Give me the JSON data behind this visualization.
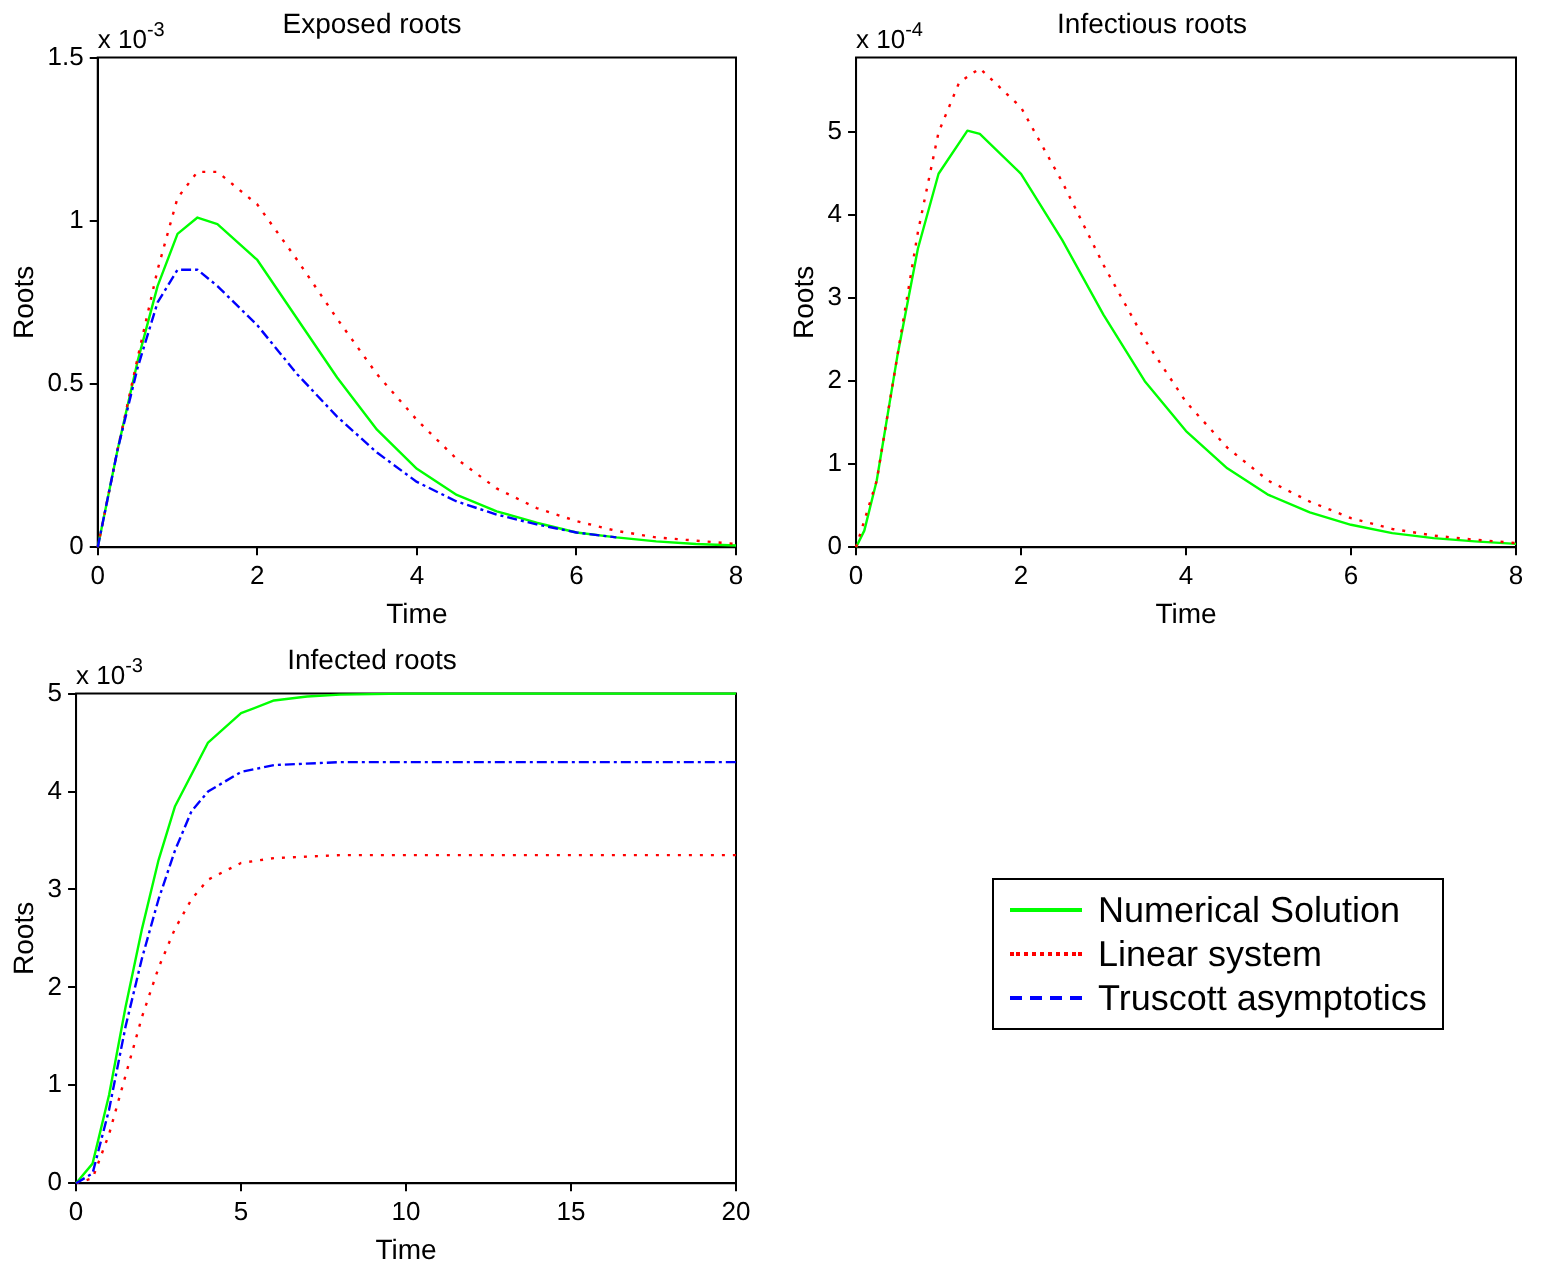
{
  "chart_data": [
    {
      "type": "line",
      "title": "Exposed roots",
      "xlabel": "Time",
      "ylabel": "Roots",
      "annotations": [
        "x 10$^{-3}$"
      ],
      "xlim": [
        0,
        8
      ],
      "xticks": [
        0,
        2,
        4,
        6,
        8
      ],
      "ylim": [
        0,
        1.5
      ],
      "yticks": [
        0,
        0.5,
        1,
        1.5
      ],
      "grid": false,
      "series": [
        {
          "color": "#00ff00",
          "line_style": "solid",
          "x": [
            0,
            0.25,
            0.5,
            0.75,
            1,
            1.25,
            1.5,
            2,
            2.5,
            3,
            3.5,
            4,
            4.5,
            5,
            5.5,
            6,
            6.5,
            7,
            7.5,
            8
          ],
          "values": [
            0,
            0.3,
            0.57,
            0.8,
            0.96,
            1.01,
            0.99,
            0.88,
            0.7,
            0.52,
            0.36,
            0.24,
            0.16,
            0.11,
            0.075,
            0.045,
            0.03,
            0.018,
            0.01,
            0.005
          ]
        },
        {
          "color": "#ff0000",
          "line_style": "dotted",
          "x": [
            0,
            0.25,
            0.5,
            0.75,
            1,
            1.25,
            1.5,
            2,
            2.5,
            3,
            3.5,
            4,
            4.5,
            5,
            5.5,
            6,
            6.5,
            7,
            7.5,
            8
          ],
          "values": [
            0,
            0.3,
            0.58,
            0.85,
            1.07,
            1.15,
            1.15,
            1.05,
            0.88,
            0.7,
            0.53,
            0.39,
            0.27,
            0.18,
            0.12,
            0.08,
            0.05,
            0.03,
            0.02,
            0.01
          ]
        },
        {
          "color": "#0000ff",
          "line_style": "dashed",
          "x": [
            0,
            0.25,
            0.5,
            0.75,
            1,
            1.25,
            1.5,
            2,
            2.5,
            3,
            3.5,
            4,
            4.5,
            5,
            5.5,
            6,
            6.5
          ],
          "values": [
            0,
            0.3,
            0.55,
            0.75,
            0.85,
            0.85,
            0.8,
            0.68,
            0.53,
            0.4,
            0.29,
            0.2,
            0.14,
            0.1,
            0.07,
            0.045,
            0.03
          ]
        }
      ]
    },
    {
      "type": "line",
      "title": "Infectious roots",
      "xlabel": "Time",
      "ylabel": "Roots",
      "annotations": [
        "x 10$^{-4}$"
      ],
      "xlim": [
        0,
        8
      ],
      "xticks": [
        0,
        2,
        4,
        6,
        8
      ],
      "ylim": [
        0,
        5.9
      ],
      "yticks": [
        0,
        1,
        2,
        3,
        4,
        5
      ],
      "grid": false,
      "series": [
        {
          "color": "#00ff00",
          "line_style": "solid",
          "x": [
            0,
            0.1,
            0.25,
            0.5,
            0.75,
            1,
            1.35,
            1.5,
            2,
            2.5,
            3,
            3.5,
            4,
            4.5,
            5,
            5.5,
            6,
            6.5,
            7,
            7.5,
            8
          ],
          "values": [
            0,
            0.2,
            0.8,
            2.3,
            3.6,
            4.5,
            5.02,
            4.98,
            4.5,
            3.7,
            2.8,
            2.0,
            1.4,
            0.95,
            0.63,
            0.42,
            0.27,
            0.17,
            0.11,
            0.07,
            0.04
          ]
        },
        {
          "color": "#ff0000",
          "line_style": "dotted",
          "x": [
            0,
            0.25,
            0.5,
            0.75,
            1,
            1.25,
            1.5,
            2,
            2.5,
            3,
            3.5,
            4,
            4.5,
            5,
            5.5,
            6,
            6.5,
            7,
            7.5,
            8
          ],
          "values": [
            0,
            0.8,
            2.3,
            3.8,
            5.0,
            5.6,
            5.77,
            5.3,
            4.4,
            3.4,
            2.5,
            1.75,
            1.2,
            0.8,
            0.55,
            0.35,
            0.22,
            0.14,
            0.09,
            0.05
          ]
        }
      ]
    },
    {
      "type": "line",
      "title": "Infected roots",
      "xlabel": "Time",
      "ylabel": "Roots",
      "annotations": [
        "x 10$^{-3}$"
      ],
      "xlim": [
        0,
        20
      ],
      "xticks": [
        0,
        5,
        10,
        15,
        20
      ],
      "ylim": [
        0,
        5
      ],
      "yticks": [
        0,
        1,
        2,
        3,
        4,
        5
      ],
      "grid": false,
      "legend": "right",
      "series": [
        {
          "name": "Numerical Solution",
          "color": "#00ff00",
          "line_style": "solid",
          "x": [
            0,
            0.5,
            1,
            1.5,
            2,
            2.5,
            3,
            4,
            5,
            6,
            7,
            8,
            10,
            20
          ],
          "values": [
            0,
            0.2,
            0.9,
            1.8,
            2.6,
            3.3,
            3.85,
            4.5,
            4.8,
            4.93,
            4.97,
            4.99,
            5,
            5
          ]
        },
        {
          "name": "Linear system",
          "color": "#ff0000",
          "line_style": "dotted",
          "x": [
            0,
            0.5,
            1,
            1.5,
            2,
            2.5,
            3,
            3.5,
            4,
            5,
            6,
            8,
            20
          ],
          "values": [
            0,
            0.05,
            0.5,
            1.1,
            1.7,
            2.2,
            2.6,
            2.9,
            3.1,
            3.27,
            3.32,
            3.35,
            3.35
          ]
        },
        {
          "name": "Truscott asymptotics",
          "color": "#0000ff",
          "line_style": "dashed",
          "x": [
            0,
            0.5,
            1,
            1.5,
            2,
            2.5,
            3,
            3.5,
            4,
            5,
            6,
            8,
            20
          ],
          "values": [
            0,
            0.1,
            0.75,
            1.6,
            2.3,
            2.9,
            3.4,
            3.8,
            4.0,
            4.2,
            4.27,
            4.3,
            4.3
          ]
        }
      ]
    }
  ]
}
